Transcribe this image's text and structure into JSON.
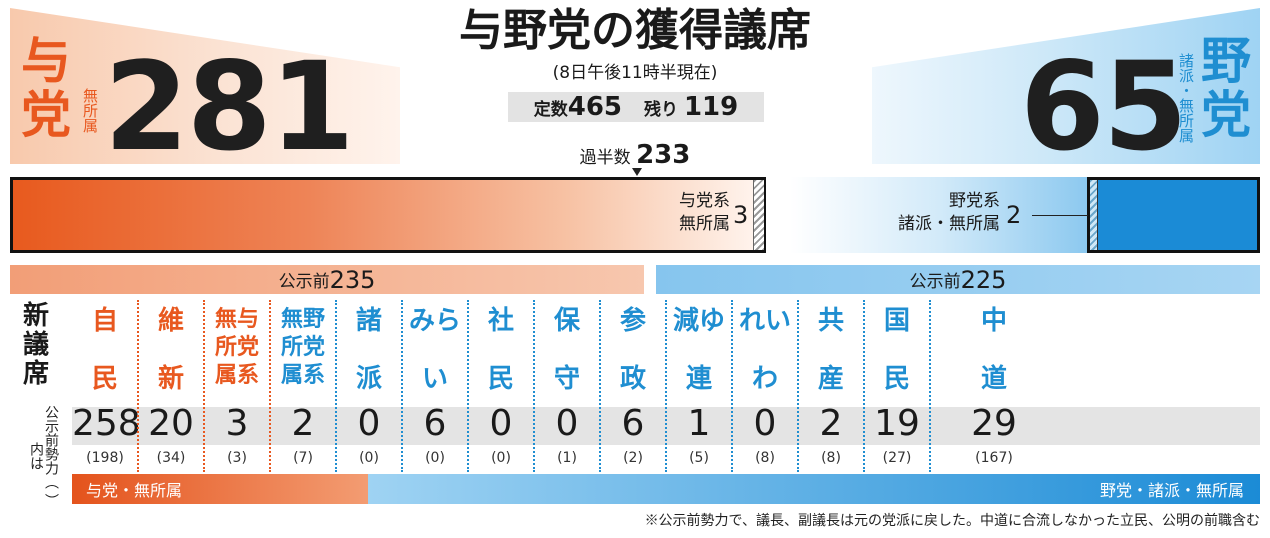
{
  "title": "与野党の獲得議席",
  "subtitle": "(8日午後11時半現在)",
  "totals": {
    "quota_label": "定数",
    "quota": "465",
    "remaining_label": "残り",
    "remaining": "119",
    "majority_label": "過半数",
    "majority": "233"
  },
  "ruling": {
    "label_1": "与",
    "label_2": "党",
    "sub": "無所属",
    "seats": "281",
    "color": "#e8581f"
  },
  "opposition": {
    "label_1": "野",
    "label_2": "党",
    "sub": "諸派・無所属",
    "seats": "65",
    "color": "#1f8ed1"
  },
  "bar": {
    "left_label_1": "与党系",
    "left_label_2": "無所属",
    "left_count": "3",
    "right_label_1": "野党系",
    "right_label_2": "諸派・無所属",
    "right_count": "2"
  },
  "pre_election": {
    "label": "公示前",
    "ruling": "235",
    "opposition": "225"
  },
  "table": {
    "row_head_1": "新",
    "row_head_2": "議",
    "row_head_3": "席",
    "row_note": "公示前勢力（ ）内は"
  },
  "chart_data": {
    "type": "table",
    "title": "与野党の獲得議席",
    "columns": [
      {
        "name_lines": [
          "自",
          "民"
        ],
        "seats": 258,
        "pre": "(198)",
        "side": "ruling"
      },
      {
        "name_lines": [
          "維",
          "新"
        ],
        "seats": 20,
        "pre": "(34)",
        "side": "ruling"
      },
      {
        "name_lines": [
          "無与",
          "所党",
          "属系"
        ],
        "seats": 3,
        "pre": "(3)",
        "side": "ruling"
      },
      {
        "name_lines": [
          "無野",
          "所党",
          "属系"
        ],
        "seats": 2,
        "pre": "(7)",
        "side": "opposition"
      },
      {
        "name_lines": [
          "諸",
          "派"
        ],
        "seats": 0,
        "pre": "(0)",
        "side": "opposition"
      },
      {
        "name_lines": [
          "みら",
          "い"
        ],
        "seats": 6,
        "pre": "(0)",
        "side": "opposition"
      },
      {
        "name_lines": [
          "社",
          "民"
        ],
        "seats": 0,
        "pre": "(0)",
        "side": "opposition"
      },
      {
        "name_lines": [
          "保",
          "守"
        ],
        "seats": 0,
        "pre": "(1)",
        "side": "opposition"
      },
      {
        "name_lines": [
          "参",
          "政"
        ],
        "seats": 6,
        "pre": "(2)",
        "side": "opposition"
      },
      {
        "name_lines": [
          "減ゆ",
          "連"
        ],
        "seats": 1,
        "pre": "(5)",
        "side": "opposition"
      },
      {
        "name_lines": [
          "れい",
          "わ"
        ],
        "seats": 0,
        "pre": "(8)",
        "side": "opposition"
      },
      {
        "name_lines": [
          "共",
          "産"
        ],
        "seats": 2,
        "pre": "(8)",
        "side": "opposition"
      },
      {
        "name_lines": [
          "国",
          "民"
        ],
        "seats": 19,
        "pre": "(27)",
        "side": "opposition"
      },
      {
        "name_lines": [
          "中",
          "道"
        ],
        "seats": 29,
        "pre": "(167)",
        "side": "opposition"
      }
    ]
  },
  "bottom": {
    "ruling_label": "与党・無所属",
    "opposition_label": "野党・諸派・無所属"
  },
  "footnote": "※公示前勢力で、議長、副議長は元の党派に戻した。中道に合流しなかった立民、公明の前職含む"
}
